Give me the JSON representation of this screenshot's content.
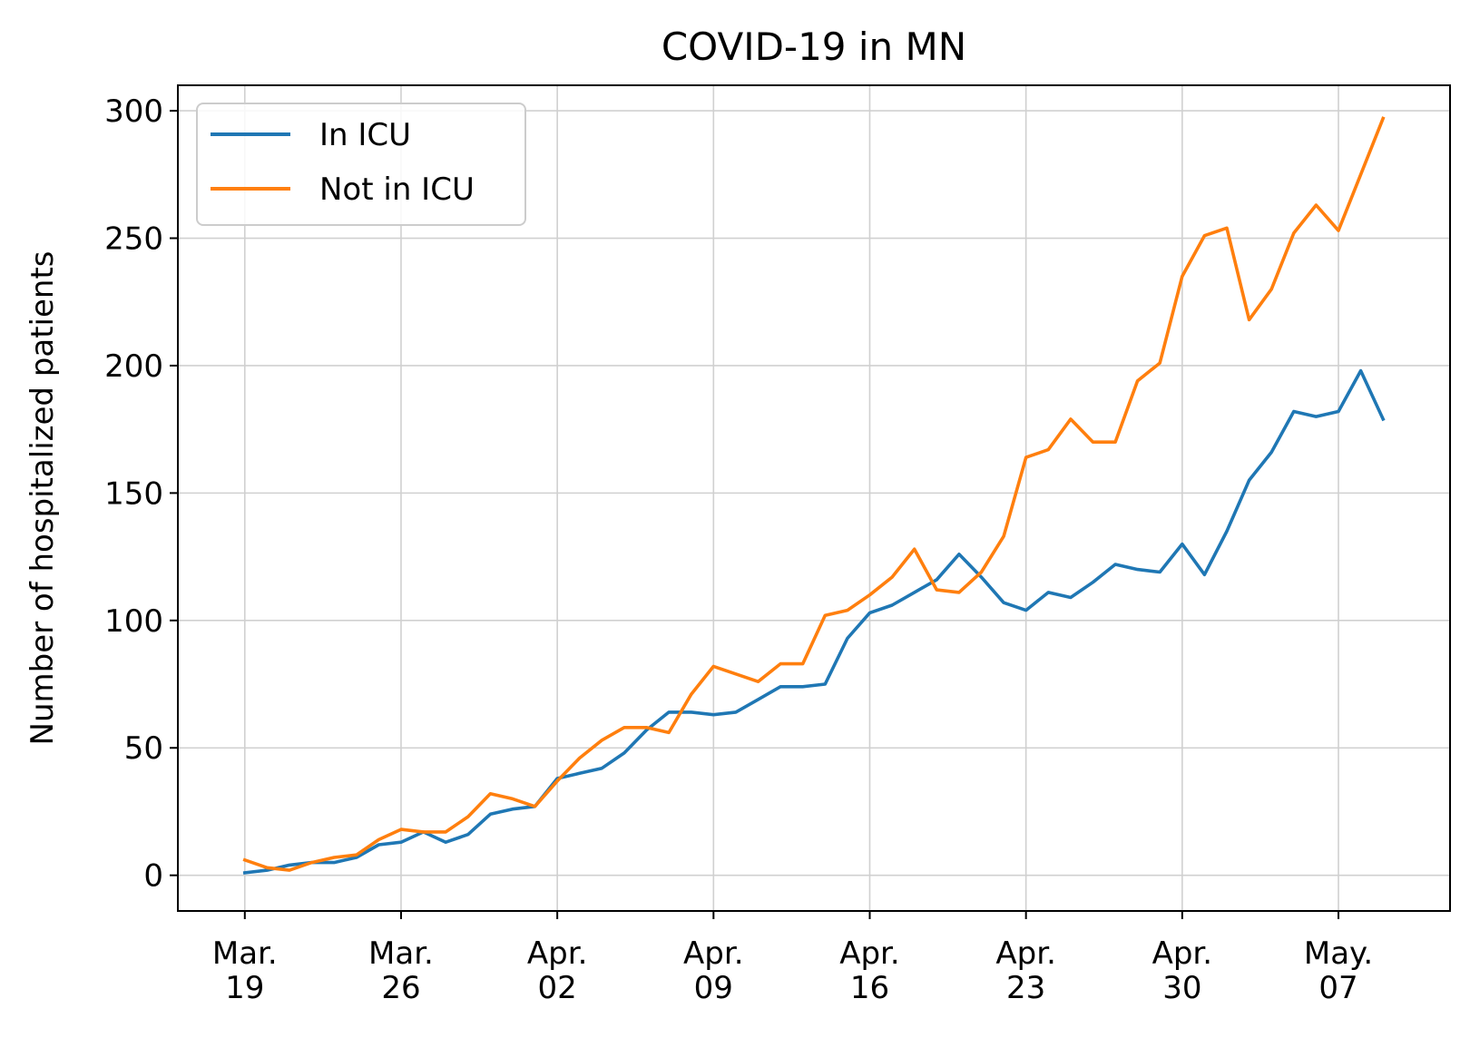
{
  "chart_data": {
    "type": "line",
    "title": "COVID-19 in MN",
    "xlabel": "",
    "ylabel": "Number of hospitalized patients",
    "x_start": "2020-03-19",
    "xlim": [
      "2020-03-16",
      "2020-05-12"
    ],
    "ylim": [
      -14,
      310
    ],
    "yticks": [
      0,
      50,
      100,
      150,
      200,
      250,
      300
    ],
    "xticks": [
      {
        "date": "2020-03-19",
        "line1": "Mar.",
        "line2": "19"
      },
      {
        "date": "2020-03-26",
        "line1": "Mar.",
        "line2": "26"
      },
      {
        "date": "2020-04-02",
        "line1": "Apr.",
        "line2": "02"
      },
      {
        "date": "2020-04-09",
        "line1": "Apr.",
        "line2": "09"
      },
      {
        "date": "2020-04-16",
        "line1": "Apr.",
        "line2": "16"
      },
      {
        "date": "2020-04-23",
        "line1": "Apr.",
        "line2": "23"
      },
      {
        "date": "2020-04-30",
        "line1": "Apr.",
        "line2": "30"
      },
      {
        "date": "2020-05-07",
        "line1": "May.",
        "line2": "07"
      }
    ],
    "grid": true,
    "legend_position": "top-left",
    "series": [
      {
        "name": "In ICU",
        "color": "#1f77b4",
        "values": [
          1,
          2,
          4,
          5,
          5,
          7,
          12,
          13,
          17,
          13,
          16,
          24,
          26,
          27,
          38,
          40,
          42,
          48,
          57,
          64,
          64,
          63,
          64,
          69,
          74,
          74,
          75,
          93,
          103,
          106,
          111,
          116,
          126,
          117,
          107,
          104,
          111,
          109,
          115,
          122,
          120,
          119,
          130,
          118,
          135,
          155,
          166,
          182,
          180,
          182,
          198,
          179
        ]
      },
      {
        "name": "Not in ICU",
        "color": "#ff7f0e",
        "values": [
          6,
          3,
          2,
          5,
          7,
          8,
          14,
          18,
          17,
          17,
          23,
          32,
          30,
          27,
          37,
          46,
          53,
          58,
          58,
          56,
          71,
          82,
          79,
          76,
          83,
          83,
          102,
          104,
          110,
          117,
          128,
          112,
          111,
          119,
          133,
          164,
          167,
          179,
          170,
          170,
          194,
          201,
          235,
          251,
          254,
          218,
          230,
          252,
          263,
          253,
          275,
          297
        ]
      }
    ]
  }
}
